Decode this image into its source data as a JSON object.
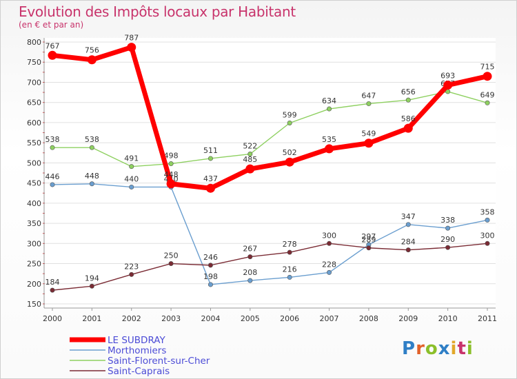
{
  "header": {
    "title": "Evolution des Impôts locaux par Habitant",
    "subtitle": "(en € et par an)"
  },
  "logo": {
    "text": "Proxiti",
    "letter_colors": [
      "#2f7fc6",
      "#e2622a",
      "#8bbf2a",
      "#2f7fc6",
      "#e2a82a",
      "#c8336b",
      "#8bbf2a"
    ]
  },
  "chart_data": {
    "type": "line",
    "title": "Evolution des Impôts locaux par Habitant",
    "subtitle": "(en € et par an)",
    "x": [
      "2000",
      "2001",
      "2002",
      "2003",
      "2004",
      "2005",
      "2006",
      "2007",
      "2008",
      "2009",
      "2010",
      "2011"
    ],
    "ylim": [
      150,
      800
    ],
    "yticks": [
      150,
      200,
      250,
      300,
      350,
      400,
      450,
      500,
      550,
      600,
      650,
      700,
      750,
      800
    ],
    "grid": "horizontal",
    "legend_position": "bottom-left",
    "series": [
      {
        "name": "Saint-Florent-sur-Cher",
        "color": "#8ed060",
        "values": [
          538,
          538,
          491,
          498,
          511,
          522,
          599,
          634,
          647,
          656,
          677,
          649
        ]
      },
      {
        "name": "Morthomiers",
        "color": "#6a9ecf",
        "values": [
          446,
          448,
          440,
          440,
          198,
          208,
          216,
          228,
          297,
          347,
          338,
          358
        ]
      },
      {
        "name": "Saint-Caprais",
        "color": "#7a2b34",
        "values": [
          184,
          194,
          223,
          250,
          246,
          267,
          278,
          300,
          289,
          284,
          290,
          300
        ]
      },
      {
        "name": "LE SUBDRAY",
        "color": "#ff0000",
        "values": [
          767,
          756,
          787,
          448,
          437,
          485,
          502,
          535,
          549,
          586,
          693,
          715
        ]
      }
    ],
    "legend_order": [
      "LE SUBDRAY",
      "Morthomiers",
      "Saint-Florent-sur-Cher",
      "Saint-Caprais"
    ]
  }
}
